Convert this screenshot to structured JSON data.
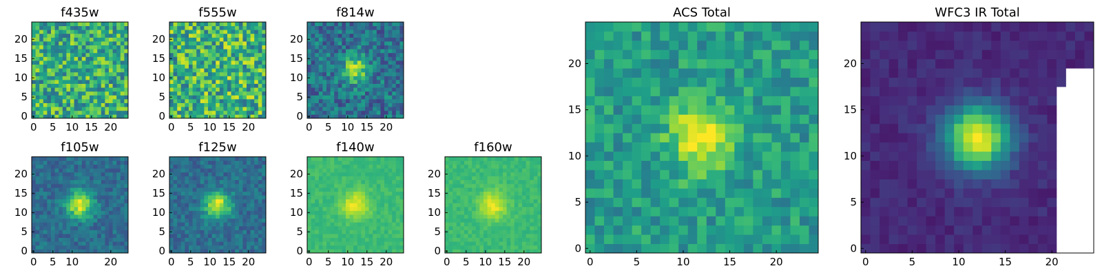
{
  "chart_data": [
    {
      "type": "heatmap",
      "title": "f435w",
      "grid_size": 25,
      "xticks": [
        0,
        5,
        10,
        15,
        20
      ],
      "yticks": [
        0,
        5,
        10,
        15,
        20
      ],
      "xlim": [
        0,
        24
      ],
      "ylim": [
        0,
        24
      ],
      "colormap": "viridis",
      "source_amplitude": 0.05,
      "noise": 0.55,
      "base": 0.62,
      "masked_columns": [],
      "grid": false,
      "legend": "none"
    },
    {
      "type": "heatmap",
      "title": "f555w",
      "grid_size": 25,
      "xticks": [
        0,
        5,
        10,
        15,
        20
      ],
      "yticks": [
        0,
        5,
        10,
        15,
        20
      ],
      "xlim": [
        0,
        24
      ],
      "ylim": [
        0,
        24
      ],
      "colormap": "viridis",
      "source_amplitude": 0.05,
      "noise": 0.6,
      "base": 0.65,
      "masked_columns": [],
      "grid": false,
      "legend": "none"
    },
    {
      "type": "heatmap",
      "title": "f814w",
      "grid_size": 25,
      "xticks": [
        0,
        5,
        10,
        15,
        20
      ],
      "yticks": [
        0,
        5,
        10,
        15,
        20
      ],
      "xlim": [
        0,
        24
      ],
      "ylim": [
        0,
        24
      ],
      "colormap": "viridis",
      "source_amplitude": 0.5,
      "noise": 0.38,
      "base": 0.38,
      "masked_columns": [],
      "grid": false,
      "legend": "none"
    },
    {
      "type": "heatmap",
      "title": "f105w",
      "grid_size": 25,
      "xticks": [
        0,
        5,
        10,
        20
      ],
      "yticks": [
        0,
        5,
        10,
        15,
        20
      ],
      "xlim": [
        0,
        24
      ],
      "ylim": [
        0,
        24
      ],
      "colormap": "viridis",
      "source_amplitude": 0.6,
      "noise": 0.22,
      "base": 0.36,
      "masked_columns": [],
      "grid": false,
      "legend": "none"
    },
    {
      "type": "heatmap",
      "title": "f125w",
      "grid_size": 25,
      "xticks": [
        0,
        5,
        10,
        15,
        20
      ],
      "yticks": [
        0,
        5,
        10,
        15,
        20
      ],
      "xlim": [
        0,
        24
      ],
      "ylim": [
        0,
        24
      ],
      "colormap": "viridis",
      "source_amplitude": 0.6,
      "noise": 0.22,
      "base": 0.36,
      "masked_columns": [],
      "grid": false,
      "legend": "none"
    },
    {
      "type": "heatmap",
      "title": "f140w",
      "grid_size": 25,
      "xticks": [
        0,
        5,
        10,
        15,
        20
      ],
      "yticks": [
        0,
        5,
        10,
        15,
        20
      ],
      "xlim": [
        0,
        24
      ],
      "ylim": [
        0,
        24
      ],
      "colormap": "viridis",
      "source_amplitude": 0.3,
      "noise": 0.1,
      "base": 0.68,
      "masked_columns": [],
      "grid": false,
      "legend": "none"
    },
    {
      "type": "heatmap",
      "title": "f160w",
      "grid_size": 25,
      "xticks": [
        0,
        5,
        10,
        15,
        20
      ],
      "yticks": [
        0,
        5,
        10,
        15,
        20
      ],
      "xlim": [
        0,
        24
      ],
      "ylim": [
        0,
        24
      ],
      "colormap": "viridis",
      "source_amplitude": 0.3,
      "noise": 0.1,
      "base": 0.68,
      "masked_columns": [],
      "grid": false,
      "legend": "none"
    },
    {
      "type": "heatmap",
      "title": "ACS Total",
      "grid_size": 25,
      "xticks": [
        0,
        5,
        10,
        15,
        20
      ],
      "yticks": [
        0,
        5,
        10,
        15,
        20
      ],
      "xlim": [
        0,
        24
      ],
      "ylim": [
        0,
        24
      ],
      "colormap": "viridis",
      "source_amplitude": 0.5,
      "noise": 0.3,
      "base": 0.55,
      "masked_columns": [],
      "grid": false,
      "legend": "none"
    },
    {
      "type": "heatmap",
      "title": "WFC3 IR Total",
      "grid_size": 25,
      "xticks": [
        0,
        5,
        10,
        15,
        20
      ],
      "yticks": [
        0,
        5,
        10,
        15,
        20
      ],
      "xlim": [
        0,
        24
      ],
      "ylim": [
        0,
        24
      ],
      "colormap": "viridis",
      "source_amplitude": 0.9,
      "noise": 0.1,
      "base": 0.12,
      "masked_columns": [
        24,
        23,
        22,
        21
      ],
      "grid": false,
      "legend": "none"
    }
  ]
}
